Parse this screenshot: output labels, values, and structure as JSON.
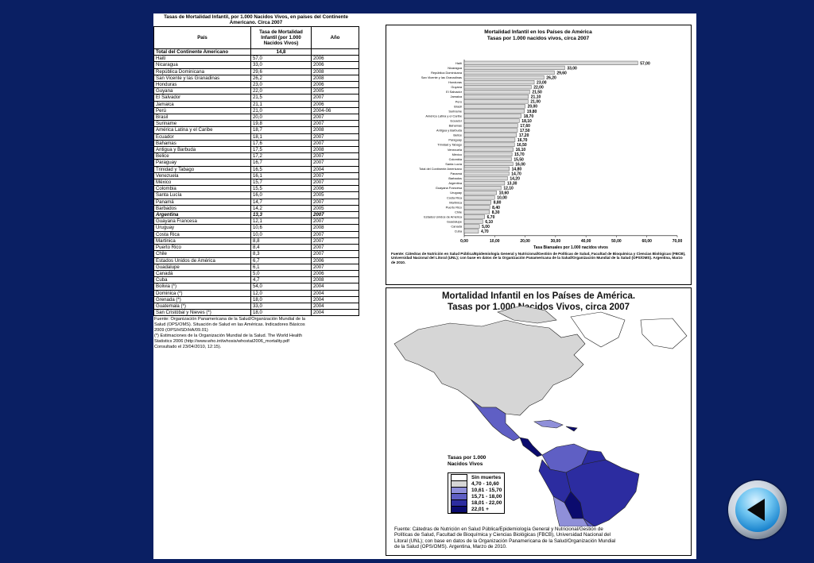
{
  "table": {
    "title": "Tasas de Mortalidad Infantil, por 1.000 Nacidos Vivos, en países del Continente Americano. Circa 2007",
    "headers": {
      "country": "País",
      "rate": "Tasa de Mortalidad Infantil (por 1.000 Nacidos Vivos)",
      "year": "Año"
    },
    "total": {
      "country": "Total del Continente Americano",
      "rate": "14,8",
      "year": ""
    },
    "rows": [
      {
        "country": "Haití",
        "rate": "57,0",
        "year": "2006"
      },
      {
        "country": "Nicaragua",
        "rate": "33,0",
        "year": "2006"
      },
      {
        "country": "República Dominicana",
        "rate": "29,6",
        "year": "2008"
      },
      {
        "country": "San Vicente y las Granadinas",
        "rate": "26,2",
        "year": "2008"
      },
      {
        "country": "Honduras",
        "rate": "23,0",
        "year": "2006"
      },
      {
        "country": "Guyana",
        "rate": "22,0",
        "year": "2005"
      },
      {
        "country": "El Salvador",
        "rate": "21,5",
        "year": "2007"
      },
      {
        "country": "Jamaica",
        "rate": "21,1",
        "year": "2006"
      },
      {
        "country": "Perú",
        "rate": "21,0",
        "year": "2004-06"
      },
      {
        "country": "Brasil",
        "rate": "20,0",
        "year": "2007"
      },
      {
        "country": "Suriname",
        "rate": "19,8",
        "year": "2007"
      },
      {
        "country": "América Latina y el Caribe",
        "rate": "18,7",
        "year": "2008"
      },
      {
        "country": "Ecuador",
        "rate": "18,1",
        "year": "2007"
      },
      {
        "country": "Bahamas",
        "rate": "17,6",
        "year": "2007"
      },
      {
        "country": "Antigua y Barbuda",
        "rate": "17,5",
        "year": "2008"
      },
      {
        "country": "Belice",
        "rate": "17,2",
        "year": "2007"
      },
      {
        "country": "Paraguay",
        "rate": "16,7",
        "year": "2007"
      },
      {
        "country": "Trinidad y Tabago",
        "rate": "16,5",
        "year": "2004"
      },
      {
        "country": "Venezuela",
        "rate": "16,1",
        "year": "2007"
      },
      {
        "country": "México",
        "rate": "15,7",
        "year": "2007"
      },
      {
        "country": "Colombia",
        "rate": "15,5",
        "year": "2006"
      },
      {
        "country": "Santa Lucía",
        "rate": "16,0",
        "year": "2005"
      },
      {
        "country": "Panamá",
        "rate": "14,7",
        "year": "2007"
      },
      {
        "country": "Barbados",
        "rate": "14,2",
        "year": "2005"
      },
      {
        "country": "Argentina",
        "rate": "13,3",
        "year": "2007"
      },
      {
        "country": "Guayana Francesa",
        "rate": "12,1",
        "year": "2007"
      },
      {
        "country": "Uruguay",
        "rate": "10,6",
        "year": "2008"
      },
      {
        "country": "Costa Rica",
        "rate": "10,0",
        "year": "2007"
      },
      {
        "country": "Martinica",
        "rate": "8,8",
        "year": "2007"
      },
      {
        "country": "Puerto Rico",
        "rate": "8,4",
        "year": "2007"
      },
      {
        "country": "Chile",
        "rate": "8,3",
        "year": "2007"
      },
      {
        "country": "Estados Unidos de América",
        "rate": "6,7",
        "year": "2006"
      },
      {
        "country": "Guadalupe",
        "rate": "6,1",
        "year": "2007"
      },
      {
        "country": "Canadá",
        "rate": "5,0",
        "year": "2006"
      },
      {
        "country": "Cuba",
        "rate": "4,7",
        "year": "2008"
      },
      {
        "country": "Bolivia (*)",
        "rate": "54,0",
        "year": "2004"
      },
      {
        "country": "Dominica (*)",
        "rate": "12,0",
        "year": "2004"
      },
      {
        "country": "Grenada (*)",
        "rate": "18,0",
        "year": "2004"
      },
      {
        "country": "Guatemala (*)",
        "rate": "33,0",
        "year": "2004"
      },
      {
        "country": "San Cristóbal y Nieves (*)",
        "rate": "18,0",
        "year": "2004"
      }
    ],
    "footnote": [
      "Fuente: Organización Panamericana de la Salud/Organización Mundial de la",
      "Salud (OPS/OMS). Situación de Salud en las Américas. Indicadores Básicos",
      "2009 (OPS/HSD/HA/09.01)",
      "(*) Estimaciones de la Organización Mundial de la Salud. The World Health",
      "Statistics 2006 (http://www.who.int/whosis/whostat2006_mortality.pdf",
      "Consultado el 23/04/2010, 12:15)."
    ]
  },
  "chart_data": {
    "type": "bar",
    "orientation": "horizontal",
    "title": "Mortalidad Infantil en los Países de América",
    "subtitle": "Tasas por 1.000 nacidos vivos, circa 2007",
    "xlabel": "Tasa Bianuales por 1.000 nacidos vivos",
    "xlim": [
      0,
      70
    ],
    "xticks": [
      "0,00",
      "10,00",
      "20,00",
      "30,00",
      "40,00",
      "50,00",
      "60,00",
      "70,00"
    ],
    "categories": [
      "Haití",
      "Nicaragua",
      "República Dominicana",
      "San Vicente y las Granadinas",
      "Honduras",
      "Guyana",
      "El Salvador",
      "Jamaica",
      "Perú",
      "Brasil",
      "Suriname",
      "América Latina y el Caribe",
      "Ecuador",
      "Bahamas",
      "Antigua y Barbuda",
      "Belice",
      "Paraguay",
      "Trinidad y Tabago",
      "Venezuela",
      "México",
      "Colombia",
      "Santa Lucía",
      "Total del Continente Americano",
      "Panamá",
      "Barbados",
      "Argentina",
      "Guayana Francesa",
      "Uruguay",
      "Costa Rica",
      "Martinica",
      "Puerto Rico",
      "Chile",
      "Estados Unidos de América",
      "Guadalupe",
      "Canadá",
      "Cuba"
    ],
    "values": [
      57.0,
      33.0,
      29.6,
      26.2,
      23.0,
      22.0,
      21.5,
      21.1,
      21.0,
      20.0,
      19.8,
      18.7,
      18.1,
      17.6,
      17.5,
      17.2,
      16.7,
      16.5,
      16.1,
      15.7,
      15.5,
      16.0,
      14.8,
      14.7,
      14.2,
      13.3,
      12.1,
      10.6,
      10.0,
      8.8,
      8.4,
      8.3,
      6.7,
      6.1,
      5.0,
      4.7
    ],
    "value_labels": [
      "57,00",
      "33,00",
      "29,60",
      "26,20",
      "23,00",
      "22,00",
      "21,50",
      "21,10",
      "21,00",
      "20,00",
      "19,80",
      "18,70",
      "18,10",
      "17,60",
      "17,50",
      "17,20",
      "16,70",
      "16,50",
      "16,10",
      "15,70",
      "15,50",
      "16,00",
      "14,80",
      "14,70",
      "14,20",
      "13,30",
      "12,10",
      "10,60",
      "10,00",
      "8,80",
      "8,40",
      "8,30",
      "6,70",
      "6,10",
      "5,00",
      "4,70"
    ],
    "bar_color": "#d9d9d9",
    "grid": false,
    "source": "Fuente: Cátedras de Nutrición en Salud Pública/Epidemiología General y Nutricional/Gestión de Políticas de Salud, Facultad de Bioquímica y Ciencias Biológicas (FBCB), Universidad Nacional del Litoral (UNL); con base en datos de la Organización Panamericana de la Salud/Organización Mundial de la Salud (OPS/OMS). Argentina, Marzo de 2010."
  },
  "map": {
    "title_line1": "Mortalidad Infantil en los Países de América.",
    "title_line2": "Tasas por 1.000 Nacidos Vivos, circa 2007",
    "legend_title_line1": "Tasas por 1.000",
    "legend_title_line2": "Nacidos Vivos",
    "legend": [
      {
        "label": "Sin muertes",
        "color": "#ffffff"
      },
      {
        "label": "4,70 - 10,60",
        "color": "#d6d6d6"
      },
      {
        "label": "10,61 - 15,70",
        "color": "#8f8fd9"
      },
      {
        "label": "15,71 - 18,00",
        "color": "#5f5fc4"
      },
      {
        "label": "18,01 - 22,00",
        "color": "#2c2ca0"
      },
      {
        "label": "22,01 +",
        "color": "#0b0b6e"
      }
    ],
    "footnote": [
      "Fuente: Cátedras de Nutrición en Salud Pública/Epidemiología General y Nutricional/Gestión de",
      "Políticas de Salud, Facultad de Bioquímica y Ciencias Biológicas (FBCB), Universidad Nacional del",
      "Litoral (UNL); con base en datos de la Organización Panamericana de la Salud/Organización Mundial",
      "de la Salud (OPS/OMS). Argentina, Marzo de 2010."
    ]
  },
  "nav": {
    "back_icon": "back-arrow-icon"
  },
  "colors": {
    "background": "#0a1f63",
    "sheet": "#ffffff"
  }
}
